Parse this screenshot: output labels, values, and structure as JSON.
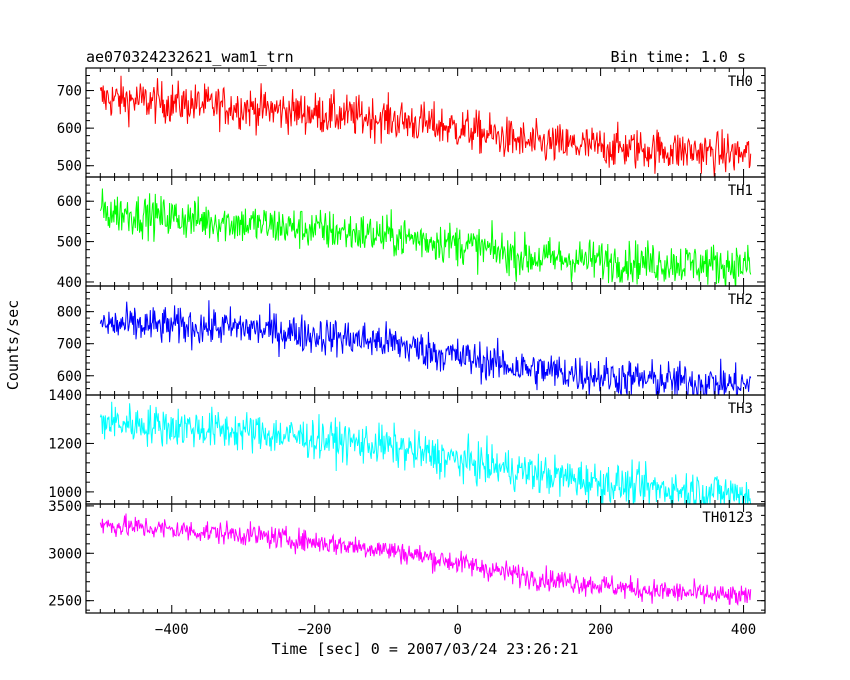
{
  "chart_data": {
    "type": "line",
    "title": "ae070324232621_wam1_trn",
    "subtitle": "Bin time: 1.0 s",
    "xlabel": "Time [sec] 0 = 2007/03/24 23:26:21",
    "ylabel": "Counts/sec",
    "xlim": [
      -520,
      430
    ],
    "x_ticks": [
      -400,
      -200,
      0,
      200,
      400
    ],
    "x_range": [
      -500,
      410
    ],
    "bin_time": 1.0,
    "grid": false,
    "panels": [
      {
        "name": "TH0",
        "color": "#ff0000",
        "ylim": [
          470,
          760
        ],
        "y_ticks": [
          500,
          600,
          700
        ],
        "trend_x": [
          -500,
          -300,
          -100,
          0,
          100,
          250,
          410
        ],
        "trend_y": [
          680,
          655,
          625,
          600,
          560,
          545,
          530
        ],
        "noise": 28
      },
      {
        "name": "TH1",
        "color": "#00ff00",
        "ylim": [
          390,
          660
        ],
        "y_ticks": [
          400,
          500,
          600
        ],
        "trend_x": [
          -500,
          -300,
          -100,
          0,
          100,
          250,
          410
        ],
        "trend_y": [
          575,
          545,
          515,
          495,
          460,
          450,
          440
        ],
        "noise": 26
      },
      {
        "name": "TH2",
        "color": "#0000ff",
        "ylim": [
          540,
          880
        ],
        "y_ticks": [
          600,
          700,
          800
        ],
        "trend_x": [
          -500,
          -300,
          -100,
          0,
          100,
          250,
          410
        ],
        "trend_y": [
          760,
          750,
          705,
          660,
          620,
          590,
          570
        ],
        "noise": 30
      },
      {
        "name": "TH3",
        "color": "#00ffff",
        "ylim": [
          950,
          1400
        ],
        "y_ticks": [
          1000,
          1200,
          1400
        ],
        "trend_x": [
          -500,
          -300,
          -100,
          0,
          100,
          250,
          410
        ],
        "trend_y": [
          1290,
          1250,
          1190,
          1130,
          1080,
          1020,
          990
        ],
        "noise": 42
      },
      {
        "name": "TH0123",
        "color": "#ff00ff",
        "ylim": [
          2370,
          3520
        ],
        "y_ticks": [
          2500,
          3000,
          3500
        ],
        "trend_x": [
          -500,
          -300,
          -100,
          0,
          100,
          250,
          410
        ],
        "trend_y": [
          3300,
          3200,
          3040,
          2900,
          2750,
          2620,
          2530
        ],
        "noise": 60
      }
    ]
  }
}
